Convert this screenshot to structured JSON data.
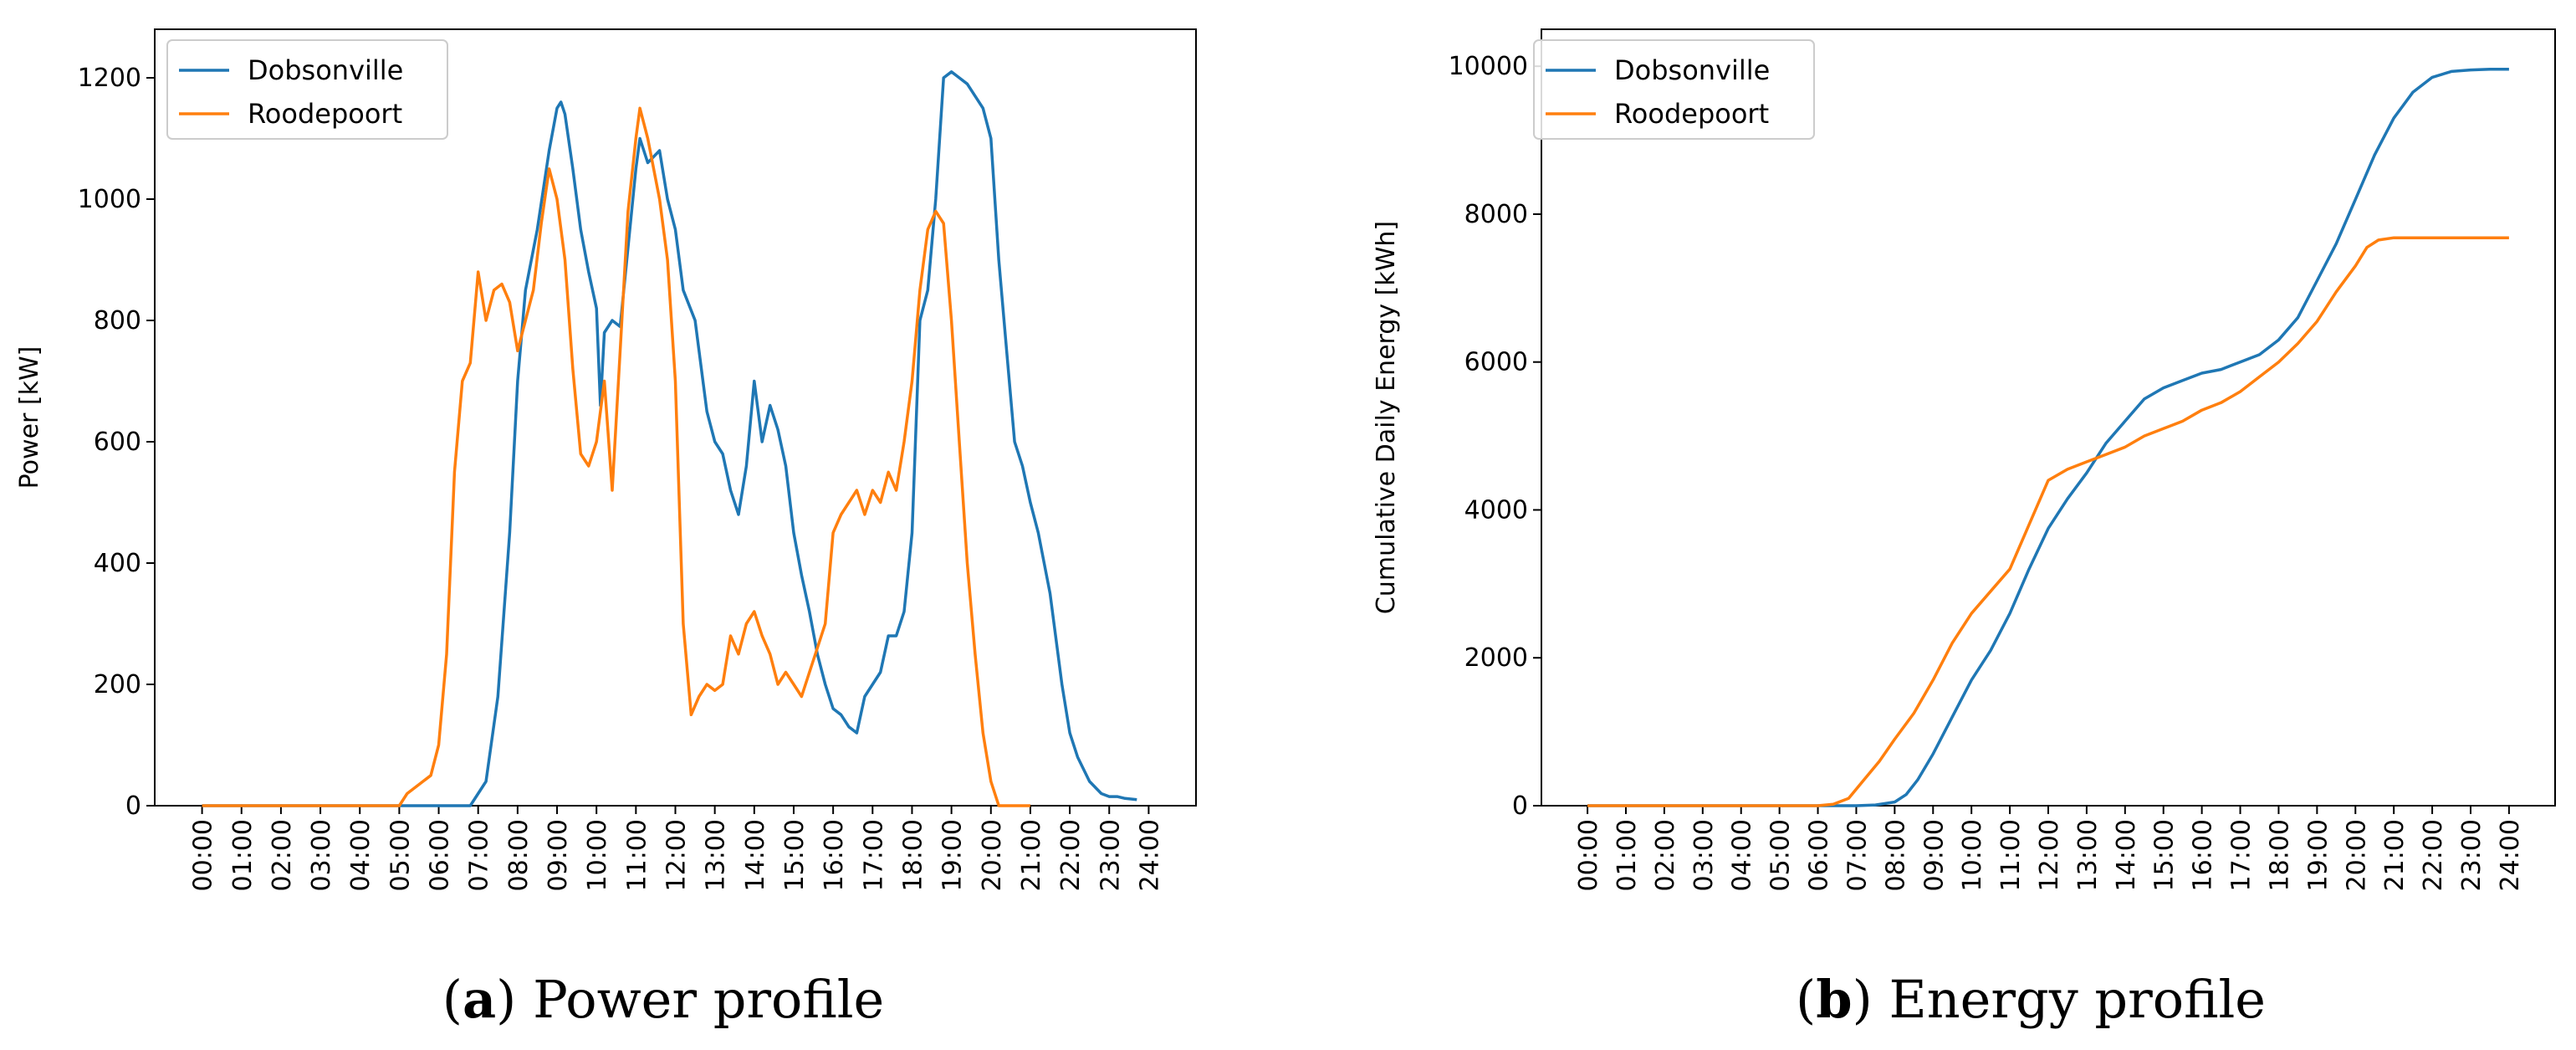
{
  "colors": {
    "dobsonville": "#1f77b4",
    "roodepoort": "#ff7f0e"
  },
  "captions": [
    {
      "letter": "a",
      "text": " Power profile"
    },
    {
      "letter": "b",
      "text": " Energy profile"
    }
  ],
  "chart_data": [
    {
      "type": "line",
      "ylabel": "Power [kW]",
      "xlim": [
        -1.2,
        25.2
      ],
      "ylim": [
        0,
        1280
      ],
      "yticks": [
        0,
        200,
        400,
        600,
        800,
        1000,
        1200
      ],
      "xtick_labels": [
        "00:00",
        "01:00",
        "02:00",
        "03:00",
        "04:00",
        "05:00",
        "06:00",
        "07:00",
        "08:00",
        "09:00",
        "10:00",
        "11:00",
        "12:00",
        "13:00",
        "14:00",
        "15:00",
        "16:00",
        "17:00",
        "18:00",
        "19:00",
        "20:00",
        "21:00",
        "22:00",
        "23:00",
        "24:00"
      ],
      "legend": [
        "Dobsonville",
        "Roodepoort"
      ],
      "legend_loc": "upper left",
      "series": [
        {
          "name": "Dobsonville",
          "x": [
            0,
            6.8,
            7.2,
            7.5,
            7.8,
            8.0,
            8.2,
            8.5,
            8.8,
            9.0,
            9.1,
            9.2,
            9.4,
            9.6,
            9.8,
            10.0,
            10.1,
            10.2,
            10.4,
            10.6,
            10.8,
            11.0,
            11.1,
            11.3,
            11.6,
            11.8,
            12.0,
            12.2,
            12.5,
            12.8,
            13.0,
            13.2,
            13.4,
            13.6,
            13.8,
            14.0,
            14.2,
            14.4,
            14.6,
            14.8,
            15.0,
            15.2,
            15.4,
            15.6,
            15.8,
            16.0,
            16.2,
            16.4,
            16.6,
            16.8,
            17.0,
            17.2,
            17.4,
            17.6,
            17.8,
            18.0,
            18.2,
            18.4,
            18.6,
            18.8,
            19.0,
            19.2,
            19.4,
            19.6,
            19.8,
            20.0,
            20.2,
            20.4,
            20.6,
            20.8,
            21.0,
            21.2,
            21.5,
            21.8,
            22.0,
            22.2,
            22.5,
            22.8,
            23.0,
            23.2,
            23.4,
            23.7
          ],
          "values": [
            0,
            0,
            40,
            180,
            450,
            700,
            850,
            950,
            1080,
            1150,
            1160,
            1140,
            1050,
            950,
            880,
            820,
            660,
            780,
            800,
            790,
            920,
            1050,
            1100,
            1060,
            1080,
            1000,
            950,
            850,
            800,
            650,
            600,
            580,
            520,
            480,
            560,
            700,
            600,
            660,
            620,
            560,
            450,
            380,
            320,
            250,
            200,
            160,
            150,
            130,
            120,
            180,
            200,
            220,
            280,
            280,
            320,
            450,
            800,
            850,
            1000,
            1200,
            1210,
            1200,
            1190,
            1170,
            1150,
            1100,
            900,
            750,
            600,
            560,
            500,
            450,
            350,
            200,
            120,
            80,
            40,
            20,
            15,
            15,
            12,
            10
          ]
        },
        {
          "name": "Roodepoort",
          "x": [
            0,
            5.0,
            5.2,
            5.5,
            5.8,
            6.0,
            6.2,
            6.4,
            6.6,
            6.8,
            7.0,
            7.2,
            7.4,
            7.6,
            7.8,
            8.0,
            8.2,
            8.4,
            8.6,
            8.8,
            9.0,
            9.2,
            9.4,
            9.6,
            9.8,
            10.0,
            10.2,
            10.4,
            10.6,
            10.8,
            11.0,
            11.1,
            11.3,
            11.6,
            11.8,
            12.0,
            12.2,
            12.4,
            12.6,
            12.8,
            13.0,
            13.2,
            13.4,
            13.6,
            13.8,
            14.0,
            14.2,
            14.4,
            14.6,
            14.8,
            15.0,
            15.2,
            15.4,
            15.6,
            15.8,
            16.0,
            16.2,
            16.4,
            16.6,
            16.8,
            17.0,
            17.2,
            17.4,
            17.6,
            17.8,
            18.0,
            18.2,
            18.4,
            18.6,
            18.8,
            19.0,
            19.2,
            19.4,
            19.6,
            19.8,
            20.0,
            20.2,
            20.4,
            20.6,
            21.0
          ],
          "values": [
            0,
            0,
            20,
            35,
            50,
            100,
            250,
            550,
            700,
            730,
            880,
            800,
            850,
            860,
            830,
            750,
            800,
            850,
            960,
            1050,
            1000,
            900,
            720,
            580,
            560,
            600,
            700,
            520,
            750,
            980,
            1100,
            1150,
            1100,
            1000,
            900,
            700,
            300,
            150,
            180,
            200,
            190,
            200,
            280,
            250,
            300,
            320,
            280,
            250,
            200,
            220,
            200,
            180,
            220,
            260,
            300,
            450,
            480,
            500,
            520,
            480,
            520,
            500,
            550,
            520,
            600,
            700,
            850,
            950,
            980,
            960,
            800,
            600,
            400,
            250,
            120,
            40,
            0,
            0,
            0,
            0
          ]
        }
      ]
    },
    {
      "type": "line",
      "ylabel": "Cumulative Daily Energy [kWh]",
      "xlim": [
        -1.2,
        25.2
      ],
      "ylim": [
        0,
        10500
      ],
      "yticks": [
        0,
        2000,
        4000,
        6000,
        8000,
        10000
      ],
      "xtick_labels": [
        "00:00",
        "01:00",
        "02:00",
        "03:00",
        "04:00",
        "05:00",
        "06:00",
        "07:00",
        "08:00",
        "09:00",
        "10:00",
        "11:00",
        "12:00",
        "13:00",
        "14:00",
        "15:00",
        "16:00",
        "17:00",
        "18:00",
        "19:00",
        "20:00",
        "21:00",
        "22:00",
        "23:00",
        "24:00"
      ],
      "legend": [
        "Dobsonville",
        "Roodepoort"
      ],
      "legend_loc": "upper left",
      "series": [
        {
          "name": "Dobsonville",
          "x": [
            0,
            7.0,
            7.5,
            8.0,
            8.3,
            8.6,
            9.0,
            9.5,
            10.0,
            10.5,
            11.0,
            11.5,
            12.0,
            12.5,
            13.0,
            13.5,
            14.0,
            14.5,
            15.0,
            15.5,
            16.0,
            16.5,
            17.0,
            17.5,
            18.0,
            18.5,
            19.0,
            19.5,
            20.0,
            20.5,
            21.0,
            21.5,
            22.0,
            22.5,
            23.0,
            23.5,
            24.0
          ],
          "values": [
            0,
            0,
            10,
            50,
            150,
            350,
            700,
            1200,
            1700,
            2100,
            2600,
            3200,
            3750,
            4150,
            4500,
            4900,
            5200,
            5500,
            5650,
            5750,
            5850,
            5900,
            6000,
            6100,
            6300,
            6600,
            7100,
            7600,
            8200,
            8800,
            9300,
            9650,
            9850,
            9930,
            9950,
            9960,
            9960
          ]
        },
        {
          "name": "Roodepoort",
          "x": [
            0,
            6.0,
            6.4,
            6.8,
            7.2,
            7.6,
            8.0,
            8.5,
            9.0,
            9.5,
            10.0,
            10.5,
            11.0,
            11.5,
            12.0,
            12.5,
            13.0,
            13.5,
            14.0,
            14.5,
            15.0,
            15.5,
            16.0,
            16.5,
            17.0,
            17.5,
            18.0,
            18.5,
            19.0,
            19.5,
            20.0,
            20.3,
            20.6,
            21.0,
            22.0,
            23.0,
            24.0
          ],
          "values": [
            0,
            0,
            20,
            100,
            350,
            600,
            900,
            1250,
            1700,
            2200,
            2600,
            2900,
            3200,
            3800,
            4400,
            4550,
            4650,
            4750,
            4850,
            5000,
            5100,
            5200,
            5350,
            5450,
            5600,
            5800,
            6000,
            6250,
            6550,
            6950,
            7300,
            7550,
            7650,
            7680,
            7680,
            7680,
            7680
          ]
        }
      ]
    }
  ]
}
